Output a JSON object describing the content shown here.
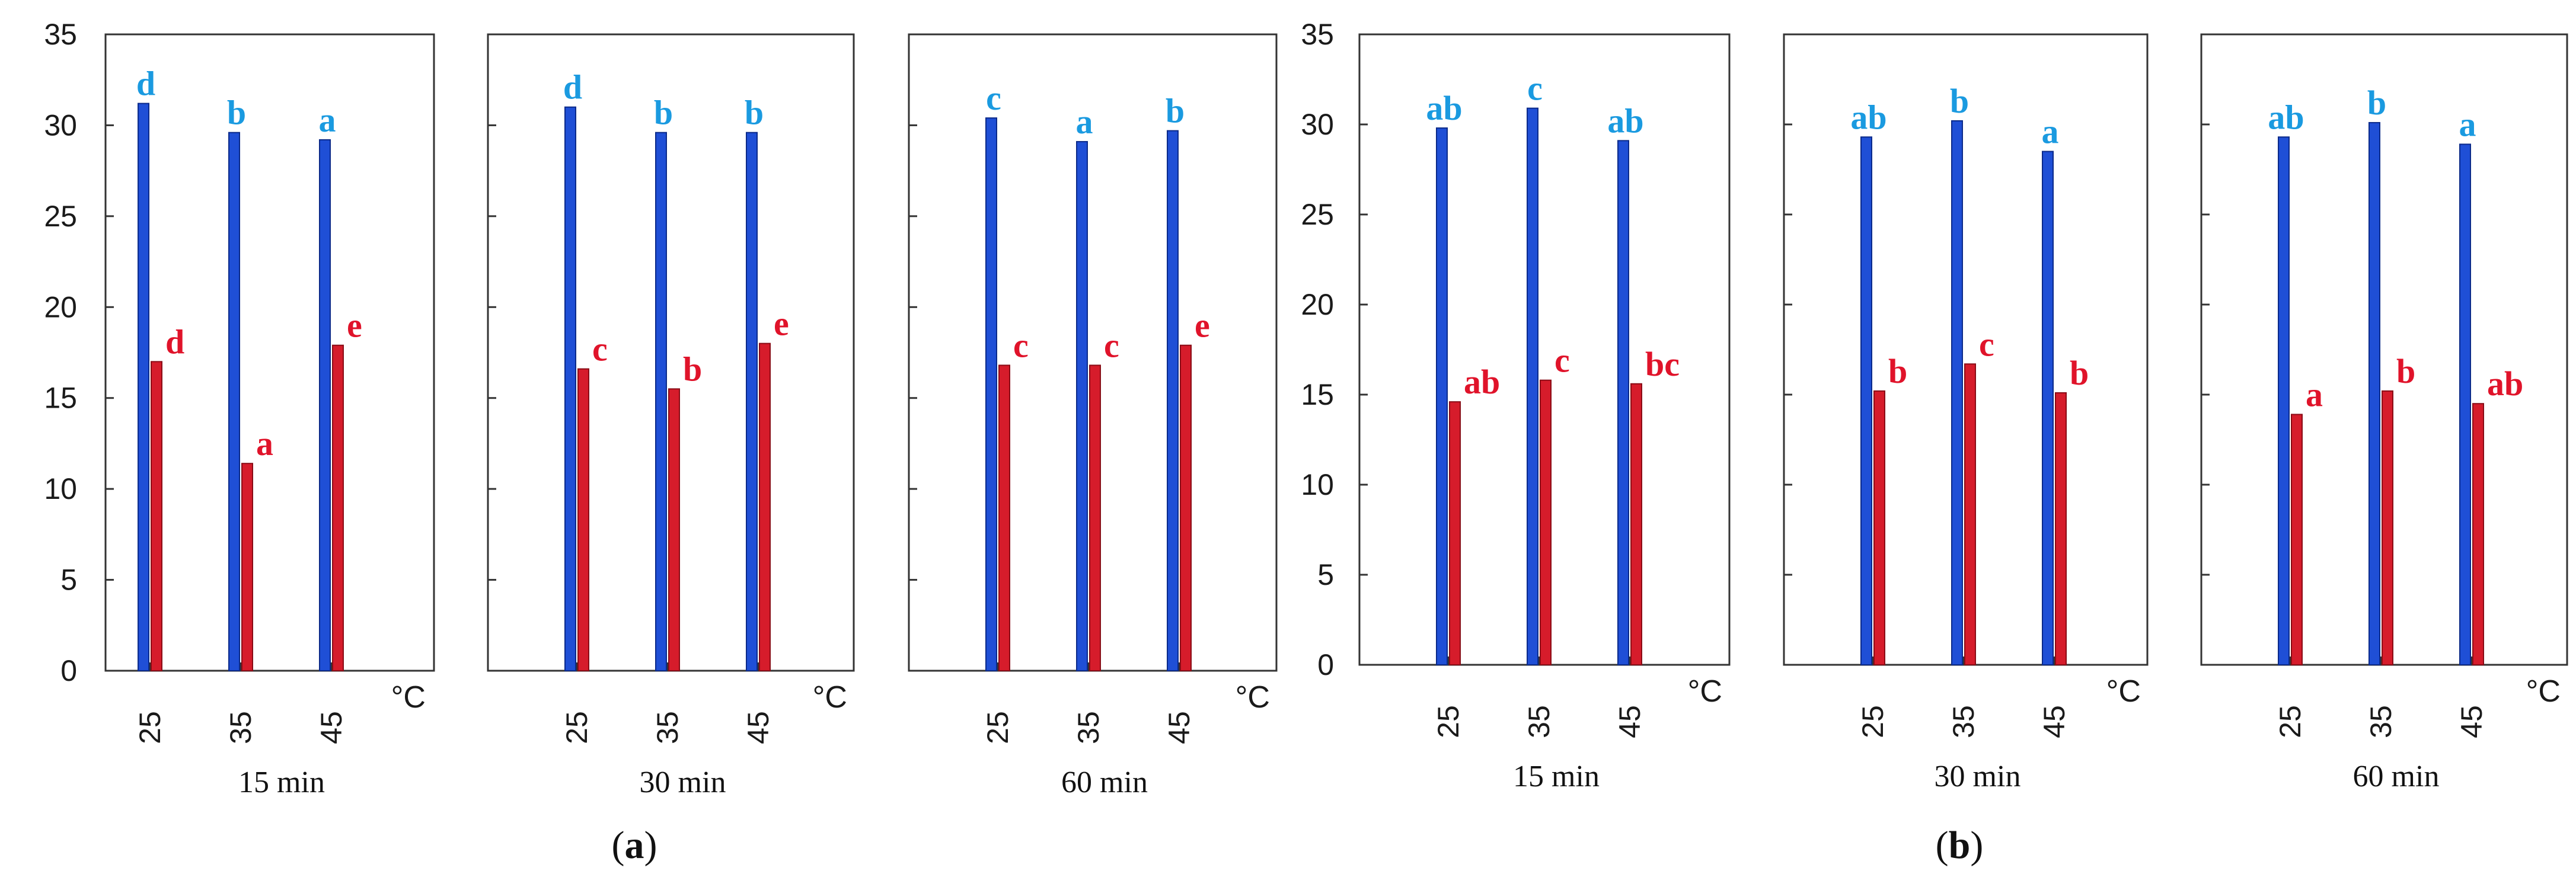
{
  "colors": {
    "blue_bar": "#1f4fd6",
    "red_bar": "#d61c2b",
    "blue_letter": "#1a9ae0",
    "red_letter": "#e0132a"
  },
  "panels": [
    {
      "caption_pre": "(",
      "caption_letter": "a",
      "caption_post": ")"
    },
    {
      "caption_pre": "(",
      "caption_letter": "b",
      "caption_post": ")"
    }
  ],
  "chart_data": [
    {
      "type": "bar",
      "panel": "a",
      "subtitle": "15 min",
      "categories": [
        "25",
        "35",
        "45"
      ],
      "x_unit": "°C",
      "ylim": [
        0,
        35
      ],
      "yticks": [
        "0",
        "5",
        "10",
        "15",
        "20",
        "25",
        "30",
        "35"
      ],
      "series": [
        {
          "values": [
            31.2,
            29.6,
            29.2
          ],
          "letters": [
            "d",
            "b",
            "a"
          ]
        },
        {
          "values": [
            17.0,
            11.4,
            17.9
          ],
          "letters": [
            "d",
            "a",
            "e"
          ]
        }
      ]
    },
    {
      "type": "bar",
      "panel": "a",
      "subtitle": "30 min",
      "categories": [
        "25",
        "35",
        "45"
      ],
      "x_unit": "°C",
      "ylim": [
        0,
        35
      ],
      "yticks": [
        "0",
        "5",
        "10",
        "15",
        "20",
        "25",
        "30",
        "35"
      ],
      "series": [
        {
          "values": [
            31.0,
            29.6,
            29.6
          ],
          "letters": [
            "d",
            "b",
            "b"
          ]
        },
        {
          "values": [
            16.6,
            15.5,
            18.0
          ],
          "letters": [
            "c",
            "b",
            "e"
          ]
        }
      ]
    },
    {
      "type": "bar",
      "panel": "a",
      "subtitle": "60 min",
      "categories": [
        "25",
        "35",
        "45"
      ],
      "x_unit": "°C",
      "ylim": [
        0,
        35
      ],
      "yticks": [
        "0",
        "5",
        "10",
        "15",
        "20",
        "25",
        "30",
        "35"
      ],
      "series": [
        {
          "values": [
            30.4,
            29.1,
            29.7
          ],
          "letters": [
            "c",
            "a",
            "b"
          ]
        },
        {
          "values": [
            16.8,
            16.8,
            17.9
          ],
          "letters": [
            "c",
            "c",
            "e"
          ]
        }
      ]
    },
    {
      "type": "bar",
      "panel": "b",
      "subtitle": "15 min",
      "categories": [
        "25",
        "35",
        "45"
      ],
      "x_unit": "°C",
      "ylim": [
        0,
        35
      ],
      "yticks": [
        "0",
        "5",
        "10",
        "15",
        "20",
        "25",
        "30",
        "35"
      ],
      "series": [
        {
          "values": [
            29.8,
            30.9,
            29.1
          ],
          "letters": [
            "ab",
            "c",
            "ab"
          ]
        },
        {
          "values": [
            14.6,
            15.8,
            15.6
          ],
          "letters": [
            "ab",
            "c",
            "bc"
          ]
        }
      ]
    },
    {
      "type": "bar",
      "panel": "b",
      "subtitle": "30 min",
      "categories": [
        "25",
        "35",
        "45"
      ],
      "x_unit": "°C",
      "ylim": [
        0,
        35
      ],
      "yticks": [
        "0",
        "5",
        "10",
        "15",
        "20",
        "25",
        "30",
        "35"
      ],
      "series": [
        {
          "values": [
            29.3,
            30.2,
            28.5
          ],
          "letters": [
            "ab",
            "b",
            "a"
          ]
        },
        {
          "values": [
            15.2,
            16.7,
            15.1
          ],
          "letters": [
            "b",
            "c",
            "b"
          ]
        }
      ]
    },
    {
      "type": "bar",
      "panel": "b",
      "subtitle": "60 min",
      "categories": [
        "25",
        "35",
        "45"
      ],
      "x_unit": "°C",
      "ylim": [
        0,
        35
      ],
      "yticks": [
        "0",
        "5",
        "10",
        "15",
        "20",
        "25",
        "30",
        "35"
      ],
      "series": [
        {
          "values": [
            29.3,
            30.1,
            28.9
          ],
          "letters": [
            "ab",
            "b",
            "a"
          ]
        },
        {
          "values": [
            13.9,
            15.2,
            14.5
          ],
          "letters": [
            "a",
            "b",
            "ab"
          ]
        }
      ]
    }
  ]
}
